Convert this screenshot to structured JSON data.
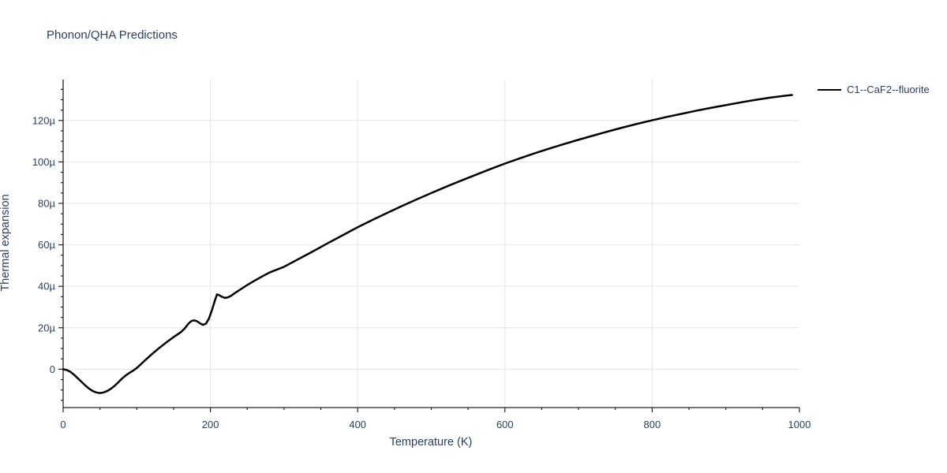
{
  "page": {
    "background": "#ffffff"
  },
  "chart_data": {
    "type": "line",
    "title": "Phonon/QHA Predictions",
    "xlabel": "Temperature (K)",
    "ylabel": "Thermal expansion",
    "legend": {
      "position": "top-right",
      "entries": [
        {
          "label": "C1--CaF2--fluorite",
          "color": "#000000"
        }
      ]
    },
    "x_axis": {
      "range": [
        0,
        1000
      ],
      "major_ticks": [
        0,
        200,
        400,
        600,
        800,
        1000
      ],
      "major_tick_labels": [
        "0",
        "200",
        "400",
        "600",
        "800",
        "1000"
      ],
      "minor_tick_step": 50,
      "gridlines_at": [
        200,
        400,
        600,
        800
      ]
    },
    "y_axis": {
      "unit": "micro (1e-6)",
      "range": [
        -18.5,
        139.7
      ],
      "major_ticks": [
        0,
        20,
        40,
        60,
        80,
        100,
        120
      ],
      "major_tick_labels": [
        "0",
        "20µ",
        "40µ",
        "60µ",
        "80µ",
        "100µ",
        "120µ"
      ],
      "minor_tick_step": 5,
      "gridlines_at": [
        0,
        20,
        40,
        60,
        80,
        100,
        120
      ]
    },
    "series": [
      {
        "name": "C1--CaF2--fluorite",
        "color": "#000000",
        "line_width": 2.5,
        "points": [
          [
            0,
            0
          ],
          [
            5,
            -0.4
          ],
          [
            10,
            -1.3
          ],
          [
            15,
            -2.7
          ],
          [
            20,
            -4.4
          ],
          [
            25,
            -6.1
          ],
          [
            30,
            -7.8
          ],
          [
            35,
            -9.3
          ],
          [
            40,
            -10.5
          ],
          [
            45,
            -11.2
          ],
          [
            50,
            -11.5
          ],
          [
            55,
            -11.2
          ],
          [
            60,
            -10.5
          ],
          [
            65,
            -9.4
          ],
          [
            70,
            -8.0
          ],
          [
            75,
            -6.3
          ],
          [
            80,
            -4.5
          ],
          [
            85,
            -3.0
          ],
          [
            90,
            -1.8
          ],
          [
            95,
            -0.7
          ],
          [
            100,
            0.6
          ],
          [
            105,
            2.2
          ],
          [
            110,
            3.9
          ],
          [
            115,
            5.5
          ],
          [
            120,
            7.1
          ],
          [
            125,
            8.6
          ],
          [
            130,
            10.1
          ],
          [
            135,
            11.5
          ],
          [
            140,
            12.9
          ],
          [
            145,
            14.2
          ],
          [
            150,
            15.5
          ],
          [
            155,
            16.7
          ],
          [
            160,
            17.9
          ],
          [
            165,
            19.6
          ],
          [
            170,
            21.9
          ],
          [
            174,
            23.2
          ],
          [
            178,
            23.6
          ],
          [
            182,
            23.1
          ],
          [
            186,
            22.1
          ],
          [
            190,
            21.4
          ],
          [
            194,
            22.0
          ],
          [
            198,
            24.4
          ],
          [
            202,
            28.4
          ],
          [
            206,
            33.0
          ],
          [
            209,
            36.1
          ],
          [
            212,
            35.7
          ],
          [
            216,
            34.9
          ],
          [
            220,
            34.4
          ],
          [
            224,
            34.7
          ],
          [
            228,
            35.4
          ],
          [
            234,
            36.9
          ],
          [
            240,
            38.3
          ],
          [
            250,
            40.6
          ],
          [
            260,
            42.7
          ],
          [
            270,
            44.7
          ],
          [
            280,
            46.6
          ],
          [
            290,
            48.0
          ],
          [
            300,
            49.4
          ],
          [
            320,
            53.2
          ],
          [
            340,
            57.0
          ],
          [
            360,
            60.9
          ],
          [
            380,
            64.7
          ],
          [
            400,
            68.5
          ],
          [
            420,
            72.0
          ],
          [
            440,
            75.4
          ],
          [
            460,
            78.7
          ],
          [
            480,
            81.9
          ],
          [
            500,
            85.0
          ],
          [
            520,
            88.0
          ],
          [
            540,
            90.9
          ],
          [
            560,
            93.7
          ],
          [
            580,
            96.5
          ],
          [
            600,
            99.2
          ],
          [
            620,
            101.7
          ],
          [
            640,
            104.1
          ],
          [
            660,
            106.4
          ],
          [
            680,
            108.6
          ],
          [
            700,
            110.7
          ],
          [
            720,
            112.7
          ],
          [
            740,
            114.7
          ],
          [
            760,
            116.6
          ],
          [
            780,
            118.4
          ],
          [
            800,
            120.1
          ],
          [
            820,
            121.7
          ],
          [
            840,
            123.2
          ],
          [
            860,
            124.7
          ],
          [
            880,
            126.1
          ],
          [
            900,
            127.4
          ],
          [
            920,
            128.7
          ],
          [
            940,
            129.9
          ],
          [
            960,
            131.0
          ],
          [
            980,
            131.9
          ],
          [
            990,
            132.3
          ]
        ]
      }
    ],
    "colors": {
      "text": "#2a3f5f",
      "axis": "#222222",
      "grid": "#e6e6e6",
      "line": "#000000",
      "background": "#ffffff"
    }
  }
}
